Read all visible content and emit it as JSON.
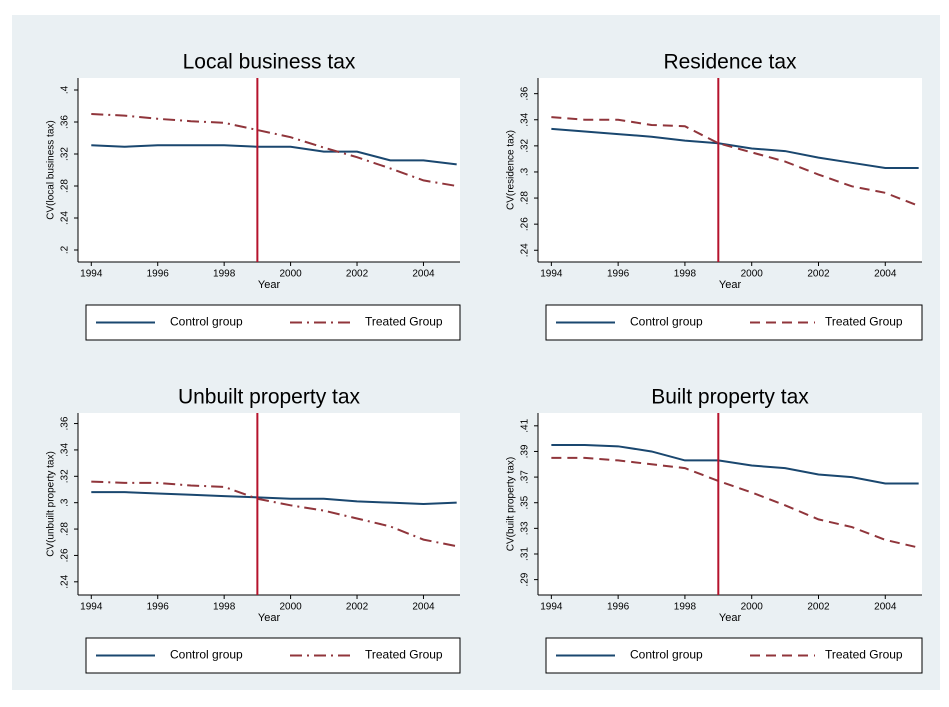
{
  "chart_data": [
    {
      "type": "line",
      "title": "Local business tax",
      "xlabel": "Year",
      "ylabel": "CV(local business tax)",
      "x": [
        1994,
        1995,
        1996,
        1997,
        1998,
        1999,
        2000,
        2001,
        2002,
        2003,
        2004,
        2005
      ],
      "series": [
        {
          "name": "Control group",
          "color": "#1a476f",
          "dash": "solid",
          "values": [
            0.331,
            0.329,
            0.331,
            0.331,
            0.331,
            0.329,
            0.329,
            0.323,
            0.323,
            0.312,
            0.312,
            0.307
          ]
        },
        {
          "name": "Treated Group",
          "color": "#90353b",
          "dash": "dash-dot",
          "values": [
            0.37,
            0.368,
            0.364,
            0.361,
            0.359,
            0.35,
            0.341,
            0.328,
            0.316,
            0.302,
            0.287,
            0.28
          ]
        }
      ],
      "xlim": [
        1993.6,
        2005.1
      ],
      "ylim": [
        0.185,
        0.415
      ],
      "xticks": [
        1994,
        1996,
        1998,
        2000,
        2002,
        2004
      ],
      "yticks": [
        {
          "value": 0.2,
          "label": ".2"
        },
        {
          "value": 0.24,
          "label": ".24"
        },
        {
          "value": 0.28,
          "label": ".28"
        },
        {
          "value": 0.32,
          "label": ".32"
        },
        {
          "value": 0.36,
          "label": ".36"
        },
        {
          "value": 0.4,
          "label": ".4"
        }
      ],
      "vline": 1999,
      "vline_color": "#b5132c"
    },
    {
      "type": "line",
      "title": "Residence tax",
      "xlabel": "Year",
      "ylabel": "CV(residence tax)",
      "x": [
        1994,
        1995,
        1996,
        1997,
        1998,
        1999,
        2000,
        2001,
        2002,
        2003,
        2004,
        2005
      ],
      "series": [
        {
          "name": "Control group",
          "color": "#1a476f",
          "dash": "solid",
          "values": [
            0.333,
            0.331,
            0.329,
            0.327,
            0.324,
            0.322,
            0.318,
            0.316,
            0.311,
            0.307,
            0.303,
            0.303
          ]
        },
        {
          "name": "Treated Group",
          "color": "#90353b",
          "dash": "dash",
          "values": [
            0.342,
            0.34,
            0.34,
            0.336,
            0.335,
            0.322,
            0.315,
            0.308,
            0.298,
            0.289,
            0.284,
            0.274
          ]
        }
      ],
      "xlim": [
        1993.6,
        2005.1
      ],
      "ylim": [
        0.231,
        0.372
      ],
      "xticks": [
        1994,
        1996,
        1998,
        2000,
        2002,
        2004
      ],
      "yticks": [
        {
          "value": 0.24,
          "label": ".24"
        },
        {
          "value": 0.26,
          "label": ".26"
        },
        {
          "value": 0.28,
          "label": ".28"
        },
        {
          "value": 0.3,
          "label": ".3"
        },
        {
          "value": 0.32,
          "label": ".32"
        },
        {
          "value": 0.34,
          "label": ".34"
        },
        {
          "value": 0.36,
          "label": ".36"
        }
      ],
      "vline": 1999,
      "vline_color": "#b5132c"
    },
    {
      "type": "line",
      "title": "Unbuilt property tax",
      "xlabel": "Year",
      "ylabel": "CV(unbuilt property tax)",
      "x": [
        1994,
        1995,
        1996,
        1997,
        1998,
        1999,
        2000,
        2001,
        2002,
        2003,
        2004,
        2005
      ],
      "series": [
        {
          "name": "Control group",
          "color": "#1a476f",
          "dash": "solid",
          "values": [
            0.308,
            0.308,
            0.307,
            0.306,
            0.305,
            0.304,
            0.303,
            0.303,
            0.301,
            0.3,
            0.299,
            0.3
          ]
        },
        {
          "name": "Treated Group",
          "color": "#90353b",
          "dash": "dash-dot",
          "values": [
            0.316,
            0.315,
            0.315,
            0.313,
            0.312,
            0.303,
            0.298,
            0.294,
            0.288,
            0.282,
            0.272,
            0.267
          ]
        }
      ],
      "xlim": [
        1993.6,
        2005.1
      ],
      "ylim": [
        0.23,
        0.368
      ],
      "xticks": [
        1994,
        1996,
        1998,
        2000,
        2002,
        2004
      ],
      "yticks": [
        {
          "value": 0.24,
          "label": ".24"
        },
        {
          "value": 0.26,
          "label": ".26"
        },
        {
          "value": 0.28,
          "label": ".28"
        },
        {
          "value": 0.3,
          "label": ".3"
        },
        {
          "value": 0.32,
          "label": ".32"
        },
        {
          "value": 0.34,
          "label": ".34"
        },
        {
          "value": 0.36,
          "label": ".36"
        }
      ],
      "vline": 1999,
      "vline_color": "#b5132c"
    },
    {
      "type": "line",
      "title": "Built property tax",
      "xlabel": "Year",
      "ylabel": "CV(built property tax)",
      "x": [
        1994,
        1995,
        1996,
        1997,
        1998,
        1999,
        2000,
        2001,
        2002,
        2003,
        2004,
        2005
      ],
      "series": [
        {
          "name": "Control group",
          "color": "#1a476f",
          "dash": "solid",
          "values": [
            0.395,
            0.395,
            0.394,
            0.39,
            0.383,
            0.383,
            0.379,
            0.377,
            0.372,
            0.37,
            0.365,
            0.365
          ]
        },
        {
          "name": "Treated Group",
          "color": "#90353b",
          "dash": "dash",
          "values": [
            0.385,
            0.385,
            0.383,
            0.38,
            0.377,
            0.367,
            0.358,
            0.348,
            0.337,
            0.331,
            0.321,
            0.315
          ]
        }
      ],
      "xlim": [
        1993.6,
        2005.1
      ],
      "ylim": [
        0.278,
        0.42
      ],
      "xticks": [
        1994,
        1996,
        1998,
        2000,
        2002,
        2004
      ],
      "yticks": [
        {
          "value": 0.29,
          "label": ".29"
        },
        {
          "value": 0.31,
          "label": ".31"
        },
        {
          "value": 0.33,
          "label": ".33"
        },
        {
          "value": 0.35,
          "label": ".35"
        },
        {
          "value": 0.37,
          "label": ".37"
        },
        {
          "value": 0.39,
          "label": ".39"
        },
        {
          "value": 0.41,
          "label": ".41"
        }
      ],
      "vline": 1999,
      "vline_color": "#b5132c"
    }
  ]
}
